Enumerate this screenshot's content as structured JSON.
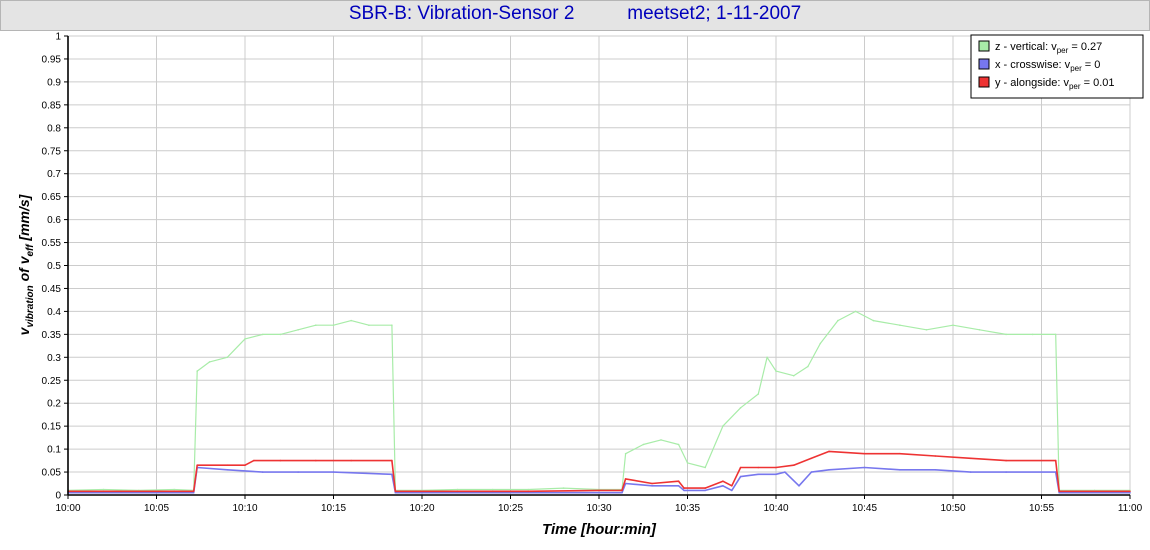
{
  "title": {
    "text": "SBR-B: Vibration-Sensor 2          meetset2; 1-11-2007"
  },
  "colors": {
    "z": "#a8eca8",
    "x": "#7777ee",
    "y": "#ee3333",
    "grid": "#cccccc",
    "title_text": "#0000bb"
  },
  "chart_data": {
    "type": "line",
    "title": "SBR-B: Vibration-Sensor 2          meetset2; 1-11-2007",
    "xlabel": "Time [hour:min]",
    "ylabel_parts": [
      "v",
      "vibration",
      " of v",
      "eff",
      " [mm/s]"
    ],
    "xlim": [
      0,
      60
    ],
    "ylim": [
      0,
      1
    ],
    "grid": true,
    "legend_position": "top-right",
    "x_ticks": [
      "10:00",
      "10:05",
      "10:10",
      "10:15",
      "10:20",
      "10:25",
      "10:30",
      "10:35",
      "10:40",
      "10:45",
      "10:50",
      "10:55",
      "11:00"
    ],
    "y_ticks": [
      "0",
      "0.05",
      "0.1",
      "0.15",
      "0.2",
      "0.25",
      "0.3",
      "0.35",
      "0.4",
      "0.45",
      "0.5",
      "0.55",
      "0.6",
      "0.65",
      "0.7",
      "0.75",
      "0.8",
      "0.85",
      "0.9",
      "0.95",
      "1"
    ],
    "series": [
      {
        "key": "z",
        "name": "z - vertical: v",
        "name_sub": "per",
        "name_value": " = 0.27",
        "points": [
          [
            0,
            0.01
          ],
          [
            2,
            0.012
          ],
          [
            4,
            0.01
          ],
          [
            6,
            0.012
          ],
          [
            7.1,
            0.01
          ],
          [
            7.3,
            0.27
          ],
          [
            8,
            0.29
          ],
          [
            9,
            0.3
          ],
          [
            10,
            0.34
          ],
          [
            11,
            0.35
          ],
          [
            12,
            0.35
          ],
          [
            13,
            0.36
          ],
          [
            14,
            0.37
          ],
          [
            15,
            0.37
          ],
          [
            16,
            0.38
          ],
          [
            17,
            0.37
          ],
          [
            18.3,
            0.37
          ],
          [
            18.5,
            0.01
          ],
          [
            20,
            0.01
          ],
          [
            22,
            0.012
          ],
          [
            24,
            0.012
          ],
          [
            26,
            0.012
          ],
          [
            28,
            0.015
          ],
          [
            30,
            0.012
          ],
          [
            31.3,
            0.012
          ],
          [
            31.5,
            0.09
          ],
          [
            32.5,
            0.11
          ],
          [
            33.5,
            0.12
          ],
          [
            34.5,
            0.11
          ],
          [
            35,
            0.07
          ],
          [
            36,
            0.06
          ],
          [
            37,
            0.15
          ],
          [
            38,
            0.19
          ],
          [
            39,
            0.22
          ],
          [
            39.5,
            0.3
          ],
          [
            40,
            0.27
          ],
          [
            41,
            0.26
          ],
          [
            41.8,
            0.28
          ],
          [
            42.5,
            0.33
          ],
          [
            43.5,
            0.38
          ],
          [
            44.5,
            0.4
          ],
          [
            45.5,
            0.38
          ],
          [
            47,
            0.37
          ],
          [
            48.5,
            0.36
          ],
          [
            50,
            0.37
          ],
          [
            51.5,
            0.36
          ],
          [
            53,
            0.35
          ],
          [
            54.5,
            0.35
          ],
          [
            55.8,
            0.35
          ],
          [
            56,
            0.01
          ],
          [
            58,
            0.01
          ],
          [
            60,
            0.01
          ]
        ]
      },
      {
        "key": "x",
        "name": "x - crosswise: v",
        "name_sub": "per",
        "name_value": " = 0",
        "points": [
          [
            0,
            0.005
          ],
          [
            3,
            0.005
          ],
          [
            7.1,
            0.005
          ],
          [
            7.3,
            0.06
          ],
          [
            9,
            0.055
          ],
          [
            11,
            0.05
          ],
          [
            13,
            0.05
          ],
          [
            15,
            0.05
          ],
          [
            18.3,
            0.045
          ],
          [
            18.5,
            0.005
          ],
          [
            22,
            0.005
          ],
          [
            26,
            0.005
          ],
          [
            30,
            0.005
          ],
          [
            31.3,
            0.005
          ],
          [
            31.5,
            0.025
          ],
          [
            33,
            0.02
          ],
          [
            34.5,
            0.02
          ],
          [
            34.8,
            0.01
          ],
          [
            36,
            0.01
          ],
          [
            37,
            0.02
          ],
          [
            37.5,
            0.01
          ],
          [
            38,
            0.04
          ],
          [
            39,
            0.045
          ],
          [
            40,
            0.045
          ],
          [
            40.5,
            0.05
          ],
          [
            41.3,
            0.02
          ],
          [
            42,
            0.05
          ],
          [
            43,
            0.055
          ],
          [
            45,
            0.06
          ],
          [
            47,
            0.055
          ],
          [
            49,
            0.055
          ],
          [
            51,
            0.05
          ],
          [
            53,
            0.05
          ],
          [
            55.8,
            0.05
          ],
          [
            56,
            0.005
          ],
          [
            60,
            0.005
          ]
        ]
      },
      {
        "key": "y",
        "name": "y - alongside: v",
        "name_sub": "per",
        "name_value": " = 0.01",
        "points": [
          [
            0,
            0.008
          ],
          [
            3,
            0.008
          ],
          [
            7.1,
            0.008
          ],
          [
            7.3,
            0.065
          ],
          [
            9,
            0.065
          ],
          [
            10,
            0.065
          ],
          [
            10.5,
            0.075
          ],
          [
            12,
            0.075
          ],
          [
            14,
            0.075
          ],
          [
            16,
            0.075
          ],
          [
            18.3,
            0.075
          ],
          [
            18.5,
            0.008
          ],
          [
            22,
            0.008
          ],
          [
            26,
            0.008
          ],
          [
            30,
            0.01
          ],
          [
            31.3,
            0.01
          ],
          [
            31.5,
            0.035
          ],
          [
            33,
            0.025
          ],
          [
            34.5,
            0.03
          ],
          [
            34.8,
            0.015
          ],
          [
            36,
            0.015
          ],
          [
            37,
            0.03
          ],
          [
            37.5,
            0.02
          ],
          [
            38,
            0.06
          ],
          [
            39,
            0.06
          ],
          [
            40,
            0.06
          ],
          [
            41,
            0.065
          ],
          [
            42,
            0.08
          ],
          [
            43,
            0.095
          ],
          [
            45,
            0.09
          ],
          [
            47,
            0.09
          ],
          [
            49,
            0.085
          ],
          [
            51,
            0.08
          ],
          [
            53,
            0.075
          ],
          [
            55.8,
            0.075
          ],
          [
            56,
            0.008
          ],
          [
            60,
            0.008
          ]
        ]
      }
    ]
  }
}
